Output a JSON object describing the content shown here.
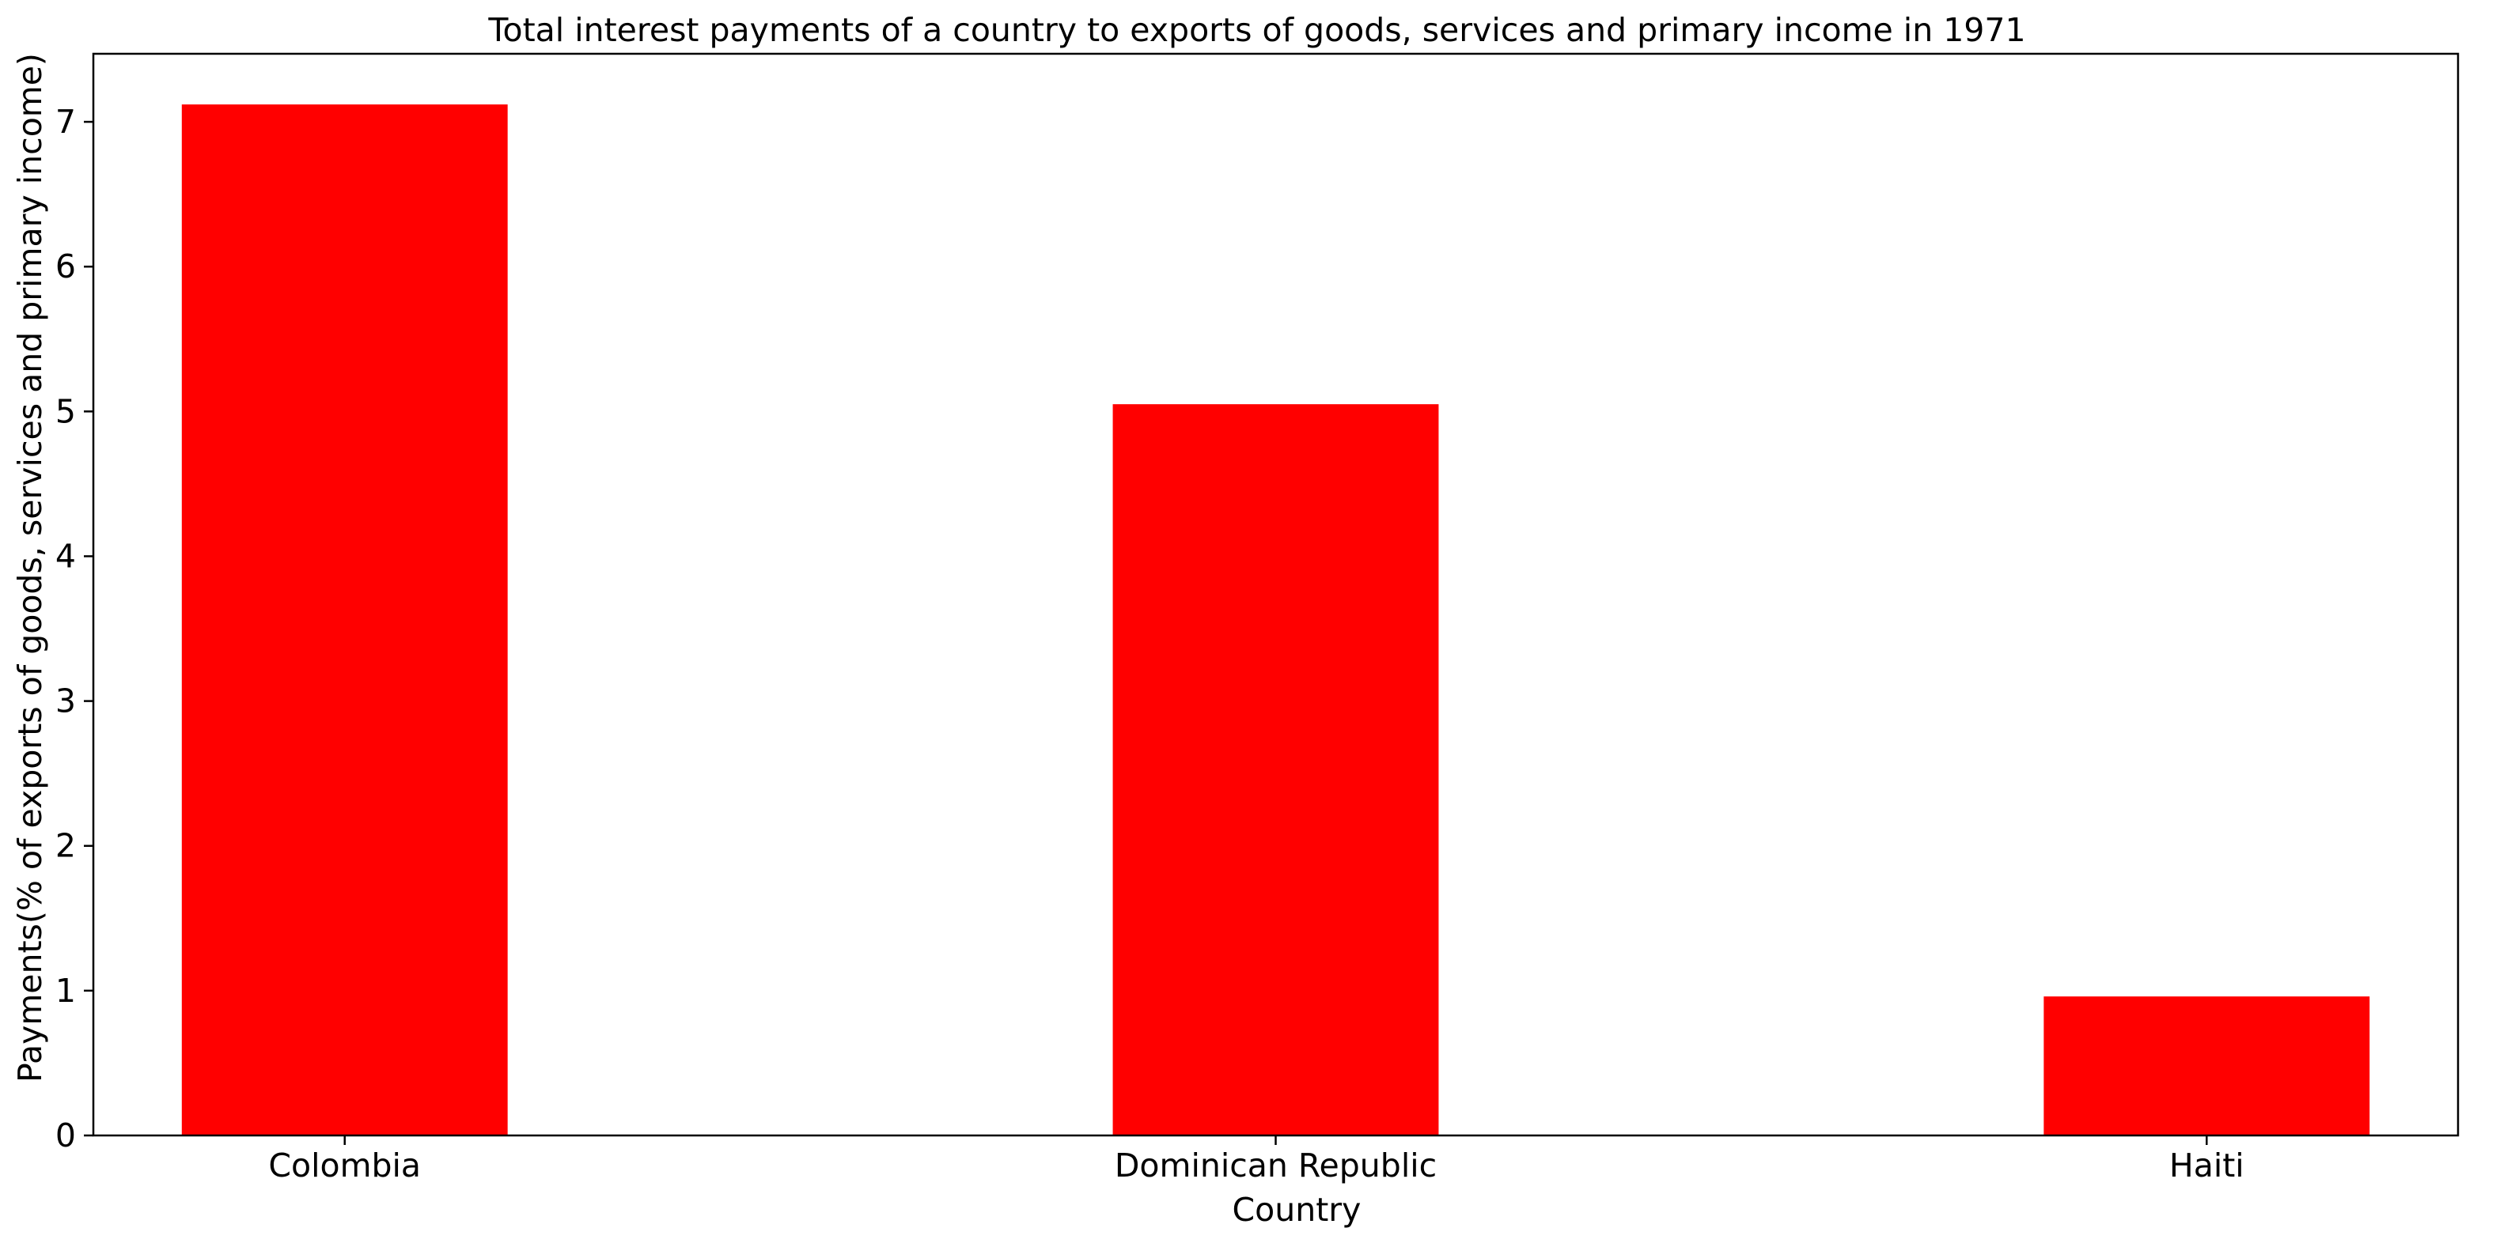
{
  "chart_data": {
    "type": "bar",
    "title": "Total interest payments of a country to exports of goods, services and primary income in 1971",
    "xlabel": "Country",
    "ylabel": "Payments(% of exports of goods, services and primary income)",
    "categories": [
      "Colombia",
      "Dominican Republic",
      "Haiti"
    ],
    "values": [
      7.12,
      5.05,
      0.96
    ],
    "ylim": [
      0,
      7.47
    ],
    "yticks": [
      0,
      1,
      2,
      3,
      4,
      5,
      6,
      7
    ],
    "bar_color": "#ff0000",
    "grid": false,
    "legend": "none"
  }
}
